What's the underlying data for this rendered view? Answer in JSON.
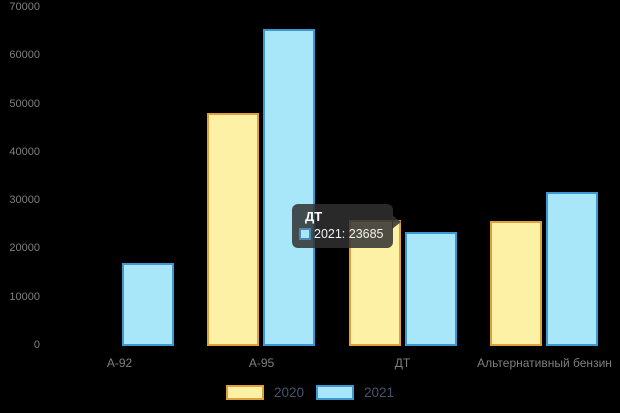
{
  "colors": {
    "background": "#000000",
    "axis_text": "#7f7f7f",
    "legend_text": "#44546a",
    "tooltip_bg": "rgba(48,48,48,0.85)",
    "tooltip_text": "#ffffff"
  },
  "chart_data": {
    "type": "bar",
    "title": "",
    "xlabel": "",
    "ylabel": "",
    "categories": [
      "А-92",
      "А-95",
      "ДТ",
      "Альтернативный бензин"
    ],
    "series": [
      {
        "name": "2020",
        "values": [
          null,
          48200,
          26000,
          25800
        ],
        "fill": "#fdf1a6",
        "border": "#dfa03a"
      },
      {
        "name": "2021",
        "values": [
          17250,
          65600,
          23685,
          31800
        ],
        "fill": "#a8e6fa",
        "border": "#3d97d3"
      }
    ],
    "ylim": [
      0,
      70000
    ],
    "yticks": [
      0,
      10000,
      20000,
      30000,
      40000,
      50000,
      60000,
      70000
    ],
    "grid": false,
    "legend_position": "bottom"
  },
  "tooltip": {
    "title": "ДТ",
    "series_label": "2021",
    "value": 23685,
    "text": "2021: 23685",
    "swatch_fill": "#a8e6fa",
    "swatch_border": "#4d89ae"
  }
}
